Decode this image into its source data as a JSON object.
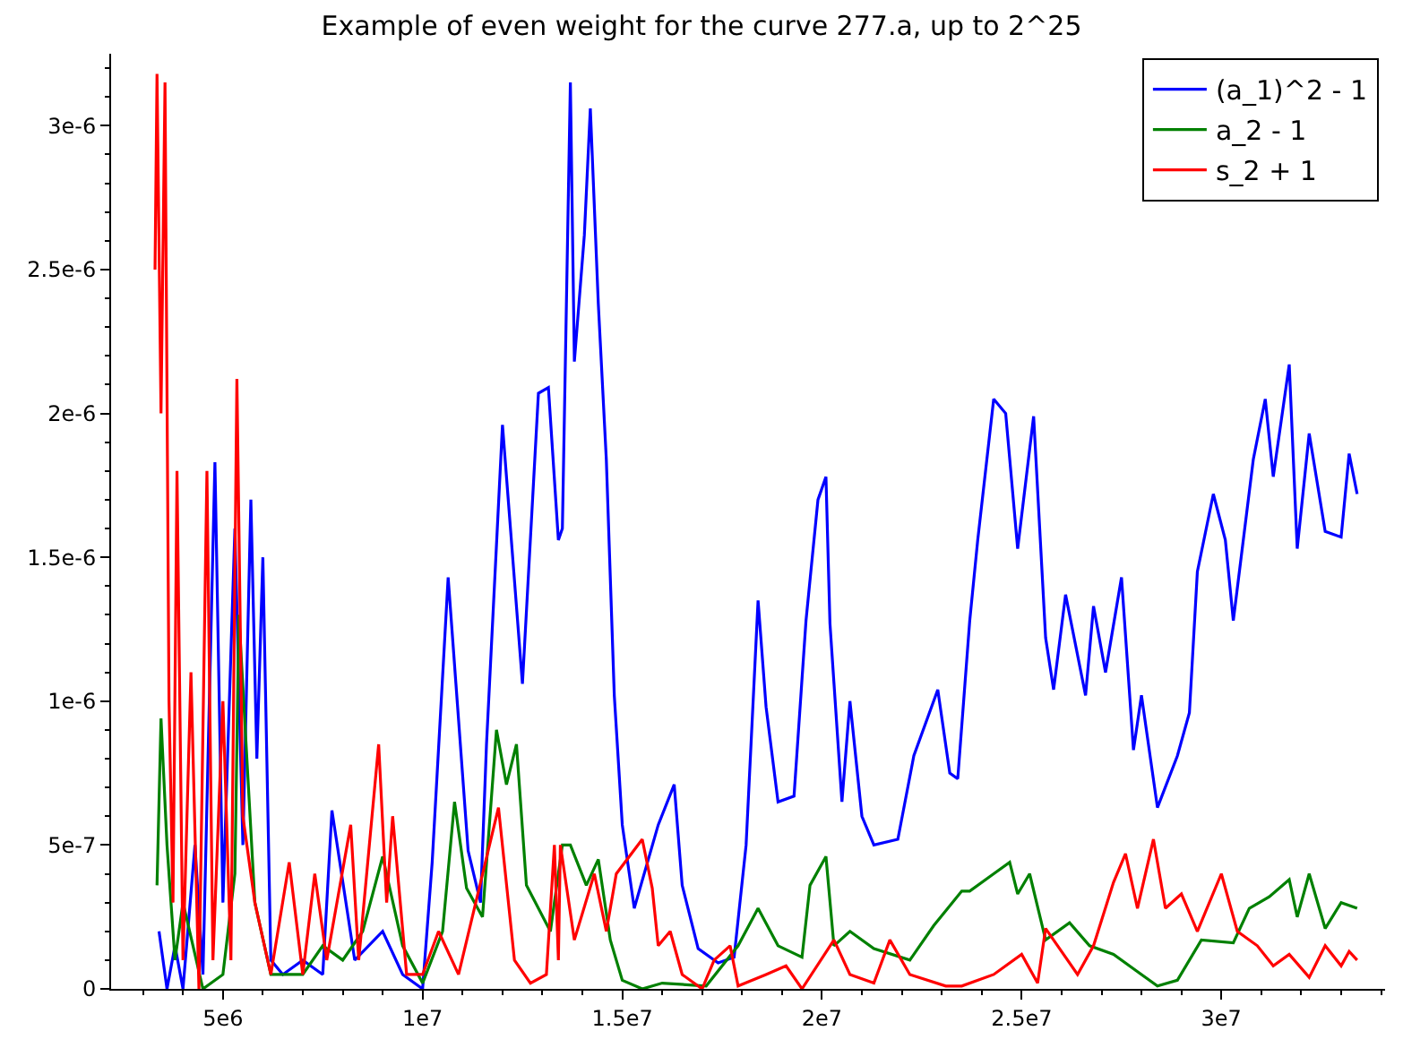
{
  "chart_data": {
    "type": "line",
    "title": "Example of even weight for the curve 277.a, up to 2^25",
    "xlim": [
      2200000.0,
      34100000.0
    ],
    "ylim": [
      0,
      3.25e-06
    ],
    "xticks": [
      {
        "value": 5000000.0,
        "label": "5e6"
      },
      {
        "value": 10000000.0,
        "label": "1e7"
      },
      {
        "value": 15000000.0,
        "label": "1.5e7"
      },
      {
        "value": 20000000.0,
        "label": "2e7"
      },
      {
        "value": 25000000.0,
        "label": "2.5e7"
      },
      {
        "value": 30000000.0,
        "label": "3e7"
      }
    ],
    "yticks": [
      0,
      {
        "value": 5e-07,
        "label": "5e-7"
      },
      {
        "value": 1e-06,
        "label": "1e-6"
      },
      {
        "value": 1.5e-06,
        "label": "1.5e-6"
      },
      {
        "value": 2e-06,
        "label": "2e-6"
      },
      {
        "value": 2.5e-06,
        "label": "2.5e-6"
      },
      {
        "value": 3e-06,
        "label": "3e-6"
      }
    ],
    "legend": "top right",
    "marker": "none",
    "line_style": "solid",
    "series": [
      {
        "name": "(a_1)^2 - 1",
        "color": "#0000ff",
        "x": [
          3400000.0,
          3600000.0,
          3800000.0,
          4000000.0,
          4300000.0,
          4500000.0,
          4800000.0,
          5000000.0,
          5300000.0,
          5500000.0,
          5700000.0,
          5850000.0,
          6000000.0,
          6200000.0,
          6500000.0,
          7000000.0,
          7500000.0,
          7730000.0,
          8300000.0,
          9000000.0,
          9500000.0,
          10000000.0,
          10240000.0,
          10640000.0,
          11140000.0,
          11450000.0,
          11600000.0,
          12000000.0,
          12500000.0,
          12900000.0,
          13150000.0,
          13400000.0,
          13500000.0,
          13700000.0,
          13800000.0,
          14050000.0,
          14200000.0,
          14400000.0,
          14600000.0,
          14800000.0,
          15000000.0,
          15300000.0,
          15900000.0,
          16300000.0,
          16500000.0,
          16900000.0,
          17400000.0,
          17800000.0,
          18100000.0,
          18400000.0,
          18600000.0,
          18900000.0,
          19300000.0,
          19600000.0,
          19900000.0,
          20100000.0,
          20200000.0,
          20500000.0,
          20700000.0,
          21000000.0,
          21300000.0,
          21900000.0,
          22300000.0,
          22900000.0,
          23200000.0,
          23400000.0,
          23700000.0,
          23900000.0,
          24300000.0,
          24600000.0,
          24900000.0,
          25300000.0,
          25600000.0,
          25800000.0,
          26100000.0,
          26600000.0,
          26800000.0,
          27100000.0,
          27500000.0,
          27800000.0,
          28000000.0,
          28400000.0,
          28900000.0,
          29200000.0,
          29400000.0,
          29800000.0,
          30100000.0,
          30300000.0,
          30800000.0,
          31100000.0,
          31300000.0,
          31700000.0,
          31900000.0,
          32200000.0,
          32600000.0,
          33000000.0,
          33200000.0,
          33400000.0
        ],
        "values": [
          2e-07,
          0,
          1.5e-07,
          0,
          5e-07,
          5e-08,
          1.83e-06,
          3e-07,
          1.6e-06,
          5e-07,
          1.7e-06,
          8e-07,
          1.5e-06,
          1e-07,
          5e-08,
          1e-07,
          5e-08,
          6.2e-07,
          1e-07,
          2e-07,
          5e-08,
          0,
          4.4e-07,
          1.43e-06,
          4.8e-07,
          3e-07,
          8.5e-07,
          1.96e-06,
          1.06e-06,
          2.07e-06,
          2.09e-06,
          1.56e-06,
          1.6e-06,
          3.15e-06,
          2.18e-06,
          2.62e-06,
          3.06e-06,
          2.38e-06,
          1.84e-06,
          1.02e-06,
          5.7e-07,
          2.8e-07,
          5.7e-07,
          7.1e-07,
          3.6e-07,
          1.4e-07,
          9e-08,
          1.1e-07,
          5e-07,
          1.35e-06,
          9.8e-07,
          6.5e-07,
          6.7e-07,
          1.28e-06,
          1.7e-06,
          1.78e-06,
          1.27e-06,
          6.5e-07,
          1e-06,
          6e-07,
          5e-07,
          5.2e-07,
          8.1e-07,
          1.04e-06,
          7.5e-07,
          7.3e-07,
          1.28e-06,
          1.56e-06,
          2.05e-06,
          2e-06,
          1.53e-06,
          1.99e-06,
          1.22e-06,
          1.04e-06,
          1.37e-06,
          1.02e-06,
          1.33e-06,
          1.1e-06,
          1.43e-06,
          8.3e-07,
          1.02e-06,
          6.3e-07,
          8.1e-07,
          9.6e-07,
          1.45e-06,
          1.72e-06,
          1.56e-06,
          1.28e-06,
          1.84e-06,
          2.05e-06,
          1.78e-06,
          2.17e-06,
          1.53e-06,
          1.93e-06,
          1.59e-06,
          1.57e-06,
          1.86e-06,
          1.72e-06
        ]
      },
      {
        "name": "a_2 - 1",
        "color": "#008000",
        "x": [
          3350000.0,
          3450000.0,
          3600000.0,
          3800000.0,
          4000000.0,
          4500000.0,
          5000000.0,
          5300000.0,
          5400000.0,
          5800000.0,
          6200000.0,
          7000000.0,
          7500000.0,
          8000000.0,
          8500000.0,
          9000000.0,
          9500000.0,
          10000000.0,
          10500000.0,
          10800000.0,
          11100000.0,
          11500000.0,
          11850000.0,
          12100000.0,
          12350000.0,
          12600000.0,
          13200000.0,
          13500000.0,
          13700000.0,
          14100000.0,
          14400000.0,
          14700000.0,
          15000000.0,
          15500000.0,
          16000000.0,
          17100000.0,
          17900000.0,
          18400000.0,
          18900000.0,
          19500000.0,
          19700000.0,
          20100000.0,
          20300000.0,
          20700000.0,
          21300000.0,
          22200000.0,
          22800000.0,
          23500000.0,
          23700000.0,
          24300000.0,
          24700000.0,
          24900000.0,
          25200000.0,
          25600000.0,
          26200000.0,
          26700000.0,
          27300000.0,
          27900000.0,
          28400000.0,
          28900000.0,
          29500000.0,
          30300000.0,
          30700000.0,
          31200000.0,
          31700000.0,
          31900000.0,
          32200000.0,
          32600000.0,
          33000000.0,
          33400000.0
        ],
        "values": [
          3.6e-07,
          9.4e-07,
          5e-07,
          1e-07,
          3e-07,
          0,
          5e-08,
          4e-07,
          1.3e-06,
          3e-07,
          5e-08,
          5e-08,
          1.5e-07,
          1e-07,
          2e-07,
          4.6e-07,
          1.5e-07,
          2e-08,
          2e-07,
          6.5e-07,
          3.5e-07,
          2.5e-07,
          9e-07,
          7.1e-07,
          8.5e-07,
          3.6e-07,
          2e-07,
          5e-07,
          5e-07,
          3.6e-07,
          4.5e-07,
          1.7e-07,
          3e-08,
          0,
          2e-08,
          1e-08,
          1.5e-07,
          2.8e-07,
          1.5e-07,
          1.1e-07,
          3.6e-07,
          4.6e-07,
          1.5e-07,
          2e-07,
          1.4e-07,
          1e-07,
          2.2e-07,
          3.4e-07,
          3.4e-07,
          4e-07,
          4.4e-07,
          3.3e-07,
          4e-07,
          1.7e-07,
          2.3e-07,
          1.5e-07,
          1.2e-07,
          6e-08,
          1e-08,
          3e-08,
          1.7e-07,
          1.6e-07,
          2.8e-07,
          3.2e-07,
          3.8e-07,
          2.5e-07,
          4e-07,
          2.1e-07,
          3e-07,
          2.8e-07
        ]
      },
      {
        "name": "s_2 + 1",
        "color": "#ff0000",
        "x": [
          3300000.0,
          3350000.0,
          3450000.0,
          3550000.0,
          3650000.0,
          3750000.0,
          3850000.0,
          4000000.0,
          4200000.0,
          4400000.0,
          4600000.0,
          4750000.0,
          5000000.0,
          5200000.0,
          5350000.0,
          5500000.0,
          5800000.0,
          6200000.0,
          6660000.0,
          7000000.0,
          7300000.0,
          7600000.0,
          8200000.0,
          8400000.0,
          8900000.0,
          9100000.0,
          9250000.0,
          9600000.0,
          10000000.0,
          10400000.0,
          10900000.0,
          11900000.0,
          12300000.0,
          12700000.0,
          13100000.0,
          13300000.0,
          13400000.0,
          13450000.0,
          13800000.0,
          14300000.0,
          14600000.0,
          14850000.0,
          15500000.0,
          15750000.0,
          15900000.0,
          16200000.0,
          16500000.0,
          17000000.0,
          17300000.0,
          17700000.0,
          17900000.0,
          18600000.0,
          19100000.0,
          19500000.0,
          20300000.0,
          20700000.0,
          21300000.0,
          21700000.0,
          22200000.0,
          23100000.0,
          23500000.0,
          24300000.0,
          25000000.0,
          25400000.0,
          25600000.0,
          25900000.0,
          26400000.0,
          26800000.0,
          27300000.0,
          27600000.0,
          27900000.0,
          28300000.0,
          28600000.0,
          29000000.0,
          29400000.0,
          30000000.0,
          30400000.0,
          30900000.0,
          31300000.0,
          31700000.0,
          32200000.0,
          32600000.0,
          33000000.0,
          33200000.0,
          33400000.0
        ],
        "values": [
          2.5e-06,
          3.18e-06,
          2e-06,
          3.15e-06,
          1e-06,
          3e-07,
          1.8e-06,
          1e-07,
          1.1e-06,
          0,
          1.8e-06,
          1e-07,
          1e-06,
          1e-07,
          2.12e-06,
          6e-07,
          3e-07,
          5e-08,
          4.4e-07,
          5e-08,
          4e-07,
          1e-07,
          5.7e-07,
          1e-07,
          8.5e-07,
          3e-07,
          6e-07,
          5e-08,
          5e-08,
          2e-07,
          5e-08,
          6.3e-07,
          1e-07,
          2e-08,
          5e-08,
          5e-07,
          1e-07,
          5e-07,
          1.7e-07,
          4e-07,
          2e-07,
          4e-07,
          5.2e-07,
          3.5e-07,
          1.5e-07,
          2e-07,
          5e-08,
          0,
          1e-07,
          1.5e-07,
          1e-08,
          5e-08,
          8e-08,
          0,
          1.7e-07,
          5e-08,
          2e-08,
          1.7e-07,
          5e-08,
          1e-08,
          1e-08,
          5e-08,
          1.2e-07,
          2e-08,
          2.1e-07,
          1.5e-07,
          5e-08,
          1.5e-07,
          3.7e-07,
          4.7e-07,
          2.8e-07,
          5.2e-07,
          2.8e-07,
          3.3e-07,
          2e-07,
          4e-07,
          2e-07,
          1.5e-07,
          8e-08,
          1.2e-07,
          4e-08,
          1.5e-07,
          8e-08,
          1.3e-07,
          1e-07
        ]
      }
    ]
  }
}
